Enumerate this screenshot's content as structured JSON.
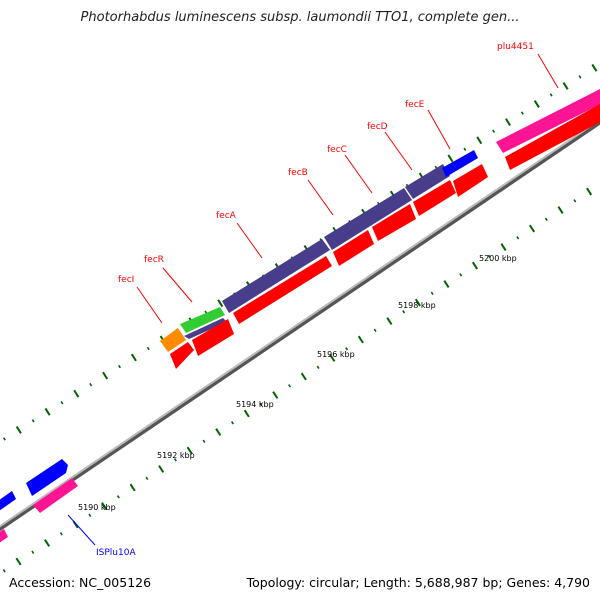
{
  "title": "Photorhabdus luminescens subsp. laumondii TTO1, complete gen...",
  "footer": {
    "accession": "Accession: NC_005126",
    "stats": "Topology: circular; Length: 5,688,987 bp; Genes: 4,790"
  },
  "axis": {
    "unit": "kbp",
    "ticks": [
      {
        "value": "5190 kbp"
      },
      {
        "value": "5192 kbp"
      },
      {
        "value": "5194 kbp"
      },
      {
        "value": "5196 kbp"
      },
      {
        "value": "5198 kbp"
      },
      {
        "value": "5200 kbp"
      }
    ]
  },
  "genes": [
    {
      "name": "fecI",
      "color": "#ff0000"
    },
    {
      "name": "fecR",
      "color": "#ff0000"
    },
    {
      "name": "fecA",
      "color": "#ff0000"
    },
    {
      "name": "fecB",
      "color": "#ff0000"
    },
    {
      "name": "fecC",
      "color": "#ff0000"
    },
    {
      "name": "fecD",
      "color": "#ff0000"
    },
    {
      "name": "fecE",
      "color": "#ff0000"
    },
    {
      "name": "plu4451",
      "color": "#ff0000"
    },
    {
      "name": "ISPlu10A",
      "color": "#0000ff"
    }
  ],
  "colors": {
    "cds": "#ff0000",
    "blue_feature": "#0000ff",
    "pink_feature": "#ff1493",
    "purple_feature": "#483d8b",
    "green_feature": "#33cc33",
    "orange_feature": "#ff8c00",
    "backbone": "#808080",
    "tick": "#006400"
  }
}
